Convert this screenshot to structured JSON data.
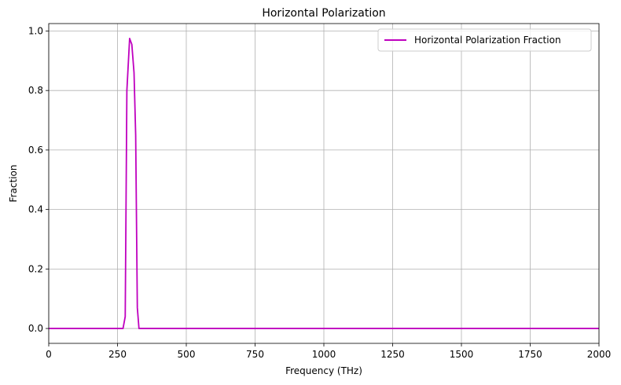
{
  "chart_data": {
    "type": "line",
    "title": "Horizontal Polarization",
    "xlabel": "Frequency (THz)",
    "ylabel": "Fraction",
    "xlim": [
      0,
      2000
    ],
    "ylim": [
      -0.05,
      1.025
    ],
    "xticks": [
      0,
      250,
      500,
      750,
      1000,
      1250,
      1500,
      1750,
      2000
    ],
    "xtick_labels": [
      "0",
      "250",
      "500",
      "750",
      "1000",
      "1250",
      "1500",
      "1750",
      "2000"
    ],
    "yticks": [
      0.0,
      0.2,
      0.4,
      0.6,
      0.8,
      1.0
    ],
    "ytick_labels": [
      "0.0",
      "0.2",
      "0.4",
      "0.6",
      "0.8",
      "1.0"
    ],
    "grid": true,
    "legend_position": "top-right",
    "series": [
      {
        "name": "Horizontal Polarization Fraction",
        "color": "#bf00bf",
        "x": [
          0,
          270,
          278,
          284,
          294,
          302,
          310,
          316,
          322,
          328,
          334,
          2000
        ],
        "y": [
          0.0,
          0.0,
          0.04,
          0.8,
          0.975,
          0.955,
          0.86,
          0.65,
          0.07,
          0.0,
          0.0,
          0.0
        ]
      }
    ]
  }
}
